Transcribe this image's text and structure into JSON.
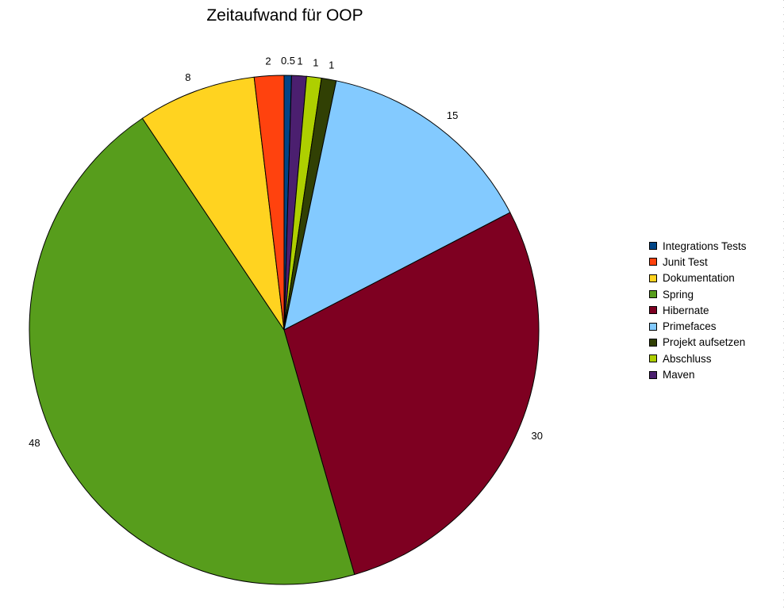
{
  "chart_data": {
    "type": "pie",
    "title": "Zeitaufwand für OOP",
    "categories": [
      "Integrations Tests",
      "Junit Test",
      "Dokumentation",
      "Spring",
      "Hibernate",
      "Primefaces",
      "Projekt aufsetzen",
      "Abschluss",
      "Maven"
    ],
    "values": [
      0.5,
      2,
      8,
      48,
      30,
      15,
      1,
      1,
      1
    ],
    "data_labels": [
      "0.5",
      "2",
      "8",
      "48",
      "30",
      "15",
      "1",
      "1",
      "1"
    ],
    "colors": [
      "#004586",
      "#ff420e",
      "#ffd320",
      "#579d1c",
      "#7e0021",
      "#83caff",
      "#314004",
      "#aecf00",
      "#4b1f6f"
    ],
    "slice_order": [
      "Integrations Tests",
      "Maven",
      "Abschluss",
      "Projekt aufsetzen",
      "Primefaces",
      "Hibernate",
      "Spring",
      "Dokumentation",
      "Junit Test"
    ],
    "legend_placement": "right",
    "direction": "clockwise-from-top"
  }
}
